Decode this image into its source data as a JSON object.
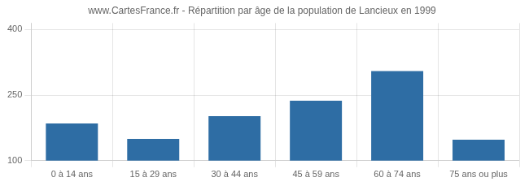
{
  "chart_data": {
    "type": "bar",
    "title": "www.CartesFrance.fr - Répartition par âge de la population de Lancieux en 1999",
    "categories": [
      "0 à 14 ans",
      "15 à 29 ans",
      "30 à 44 ans",
      "45 à 59 ans",
      "60 à 74 ans",
      "75 ans ou plus"
    ],
    "values": [
      185,
      150,
      202,
      237,
      305,
      148
    ],
    "color": "#2e6da4",
    "ylim": [
      100,
      415
    ],
    "yticks": [
      100,
      250,
      400
    ],
    "grid": true
  }
}
